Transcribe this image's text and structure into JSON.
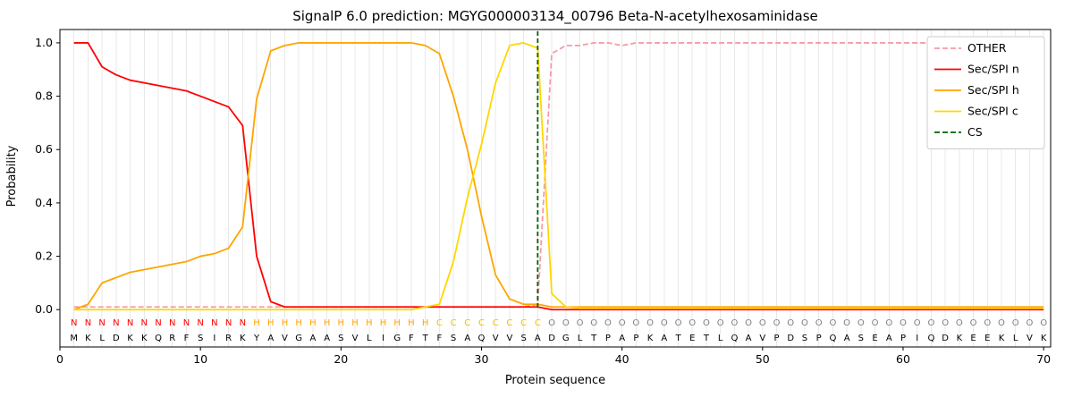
{
  "chart_data": {
    "type": "line",
    "title": "SignalP 6.0 prediction: MGYG000003134_00796 Beta-N-acetylhexosaminidase",
    "xlabel": "Protein sequence",
    "ylabel": "Probability",
    "xlim": [
      0,
      70.5
    ],
    "ylim": [
      -0.14,
      1.05
    ],
    "x_ticks": [
      0,
      10,
      20,
      30,
      40,
      50,
      60,
      70
    ],
    "y_ticks": [
      0.0,
      0.2,
      0.4,
      0.6,
      0.8,
      1.0
    ],
    "grid": "vertical-per-residue",
    "grid_color": "#e8e8e8",
    "legend_position": "upper right",
    "sequence": "MKLDKKQRFSIRKYAVGAASVLIGFTFSAQVVSADGLTPAPKATETLQAVPDSPQASEAPIQDKEEKLVK",
    "region_labels": "NNNNNNNNNNNNNHHHHHHHHHHHHHCCCCCCCCOOOOOOOOOOOOOOOOOOOOOOOOOOOOOOOOOOOO",
    "region_colors": {
      "N": "#ff0000",
      "H": "#ffa500",
      "C": "#f0c000",
      "O": "#7f7f7f"
    },
    "series": [
      {
        "id": "other",
        "name": "OTHER",
        "color": "#f799aa",
        "dashed": true,
        "values": [
          0.01,
          0.01,
          0.01,
          0.01,
          0.01,
          0.01,
          0.01,
          0.01,
          0.01,
          0.01,
          0.01,
          0.01,
          0.01,
          0.01,
          0.01,
          0.01,
          0.01,
          0.01,
          0.01,
          0.01,
          0.01,
          0.01,
          0.01,
          0.01,
          0.01,
          0.01,
          0.01,
          0.01,
          0.01,
          0.01,
          0.01,
          0.01,
          0.01,
          0.02,
          0.96,
          0.99,
          0.99,
          1.0,
          1.0,
          0.99,
          1.0,
          1.0,
          1.0,
          1.0,
          1.0,
          1.0,
          1.0,
          1.0,
          1.0,
          1.0,
          1.0,
          1.0,
          1.0,
          1.0,
          1.0,
          1.0,
          1.0,
          1.0,
          1.0,
          1.0,
          1.0,
          1.0,
          1.0,
          1.0,
          1.0,
          1.0,
          1.0,
          1.0,
          1.0,
          1.0
        ]
      },
      {
        "id": "sec-spi-n",
        "name": "Sec/SPI n",
        "color": "#ff0000",
        "dashed": false,
        "values": [
          1.0,
          1.0,
          0.91,
          0.88,
          0.86,
          0.85,
          0.84,
          0.83,
          0.82,
          0.8,
          0.78,
          0.76,
          0.69,
          0.2,
          0.03,
          0.01,
          0.01,
          0.01,
          0.01,
          0.01,
          0.01,
          0.01,
          0.01,
          0.01,
          0.01,
          0.01,
          0.01,
          0.01,
          0.01,
          0.01,
          0.01,
          0.01,
          0.01,
          0.01,
          0.0,
          0.0,
          0.0,
          0.0,
          0.0,
          0.0,
          0.0,
          0.0,
          0.0,
          0.0,
          0.0,
          0.0,
          0.0,
          0.0,
          0.0,
          0.0,
          0.0,
          0.0,
          0.0,
          0.0,
          0.0,
          0.0,
          0.0,
          0.0,
          0.0,
          0.0,
          0.0,
          0.0,
          0.0,
          0.0,
          0.0,
          0.0,
          0.0,
          0.0,
          0.0,
          0.0
        ]
      },
      {
        "id": "sec-spi-h",
        "name": "Sec/SPI h",
        "color": "#ffa500",
        "dashed": false,
        "values": [
          0.0,
          0.02,
          0.1,
          0.12,
          0.14,
          0.15,
          0.16,
          0.17,
          0.18,
          0.2,
          0.21,
          0.23,
          0.31,
          0.79,
          0.97,
          0.99,
          1.0,
          1.0,
          1.0,
          1.0,
          1.0,
          1.0,
          1.0,
          1.0,
          1.0,
          0.99,
          0.96,
          0.8,
          0.6,
          0.35,
          0.13,
          0.04,
          0.02,
          0.02,
          0.01,
          0.01,
          0.01,
          0.01,
          0.01,
          0.01,
          0.01,
          0.01,
          0.01,
          0.01,
          0.01,
          0.01,
          0.01,
          0.01,
          0.01,
          0.01,
          0.01,
          0.01,
          0.01,
          0.01,
          0.01,
          0.01,
          0.01,
          0.01,
          0.01,
          0.01,
          0.01,
          0.01,
          0.01,
          0.01,
          0.01,
          0.01,
          0.01,
          0.01,
          0.01,
          0.01
        ]
      },
      {
        "id": "sec-spi-c",
        "name": "Sec/SPI c",
        "color": "#ffd700",
        "dashed": false,
        "values": [
          0.0,
          0.0,
          0.0,
          0.0,
          0.0,
          0.0,
          0.0,
          0.0,
          0.0,
          0.0,
          0.0,
          0.0,
          0.0,
          0.0,
          0.0,
          0.0,
          0.0,
          0.0,
          0.0,
          0.0,
          0.0,
          0.0,
          0.0,
          0.0,
          0.0,
          0.01,
          0.02,
          0.18,
          0.42,
          0.62,
          0.85,
          0.99,
          1.0,
          0.98,
          0.06,
          0.01,
          0.005,
          0.005,
          0.005,
          0.005,
          0.005,
          0.005,
          0.005,
          0.005,
          0.005,
          0.005,
          0.005,
          0.005,
          0.005,
          0.005,
          0.005,
          0.005,
          0.005,
          0.005,
          0.005,
          0.005,
          0.005,
          0.005,
          0.005,
          0.005,
          0.005,
          0.005,
          0.005,
          0.005,
          0.005,
          0.005,
          0.005,
          0.005,
          0.005,
          0.005
        ]
      }
    ],
    "cs": {
      "label": "CS",
      "position": 34,
      "color": "#006400",
      "dashed": true
    }
  }
}
